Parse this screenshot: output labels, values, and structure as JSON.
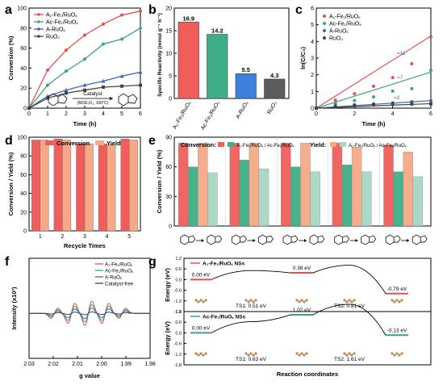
{
  "colors": {
    "red": "#e8504b",
    "green": "#3aa37a",
    "blue": "#3b65b8",
    "dark": "#444444",
    "salmon": "#f5a987",
    "mint": "#a8d8c2",
    "bar_red": "#ef5e5a",
    "bar_green": "#3fae86",
    "bar_blue": "#3d7fde",
    "bar_dark": "#5c5c5c"
  },
  "chart_data": [
    {
      "panel": "a",
      "type": "line",
      "xlabel": "Time (h)",
      "ylabel": "Conversion (%)",
      "xlim": [
        0,
        6
      ],
      "ylim": [
        0,
        100
      ],
      "xticks": [
        "0",
        "1",
        "2",
        "3",
        "4",
        "5",
        "6"
      ],
      "yticks": [
        "0",
        "20",
        "40",
        "60",
        "80",
        "100"
      ],
      "x": [
        0,
        1,
        2,
        3,
        4,
        5,
        6
      ],
      "series": [
        {
          "name": "A₁-Fe₁/RuOₓ",
          "color": "#e8504b",
          "values": [
            0,
            38,
            58,
            73,
            84,
            93,
            97
          ]
        },
        {
          "name": "Aᴄ-Fe₁/RuOₓ",
          "color": "#3aa37a",
          "values": [
            0,
            23,
            37,
            49,
            64,
            69,
            80
          ]
        },
        {
          "name": "A-RuOₓ",
          "color": "#3b65b8",
          "values": [
            0,
            12,
            18,
            23,
            27,
            32,
            36
          ]
        },
        {
          "name": "RuO₂",
          "color": "#444444",
          "values": [
            0,
            10,
            15,
            18,
            21,
            22,
            23
          ]
        }
      ],
      "inset_caption": "Catalyst",
      "inset_conditions": "(MOE,O₂, 100°C)"
    },
    {
      "panel": "b",
      "type": "bar",
      "ylabel": "Specific Reactivity (mmol g⁻¹ h⁻¹)",
      "ylim": [
        0,
        20
      ],
      "yticks": [
        "0",
        "5",
        "10",
        "15",
        "20"
      ],
      "categories": [
        "A₁-Fe₁/RuOₓ",
        "Aᴄ-Fe₁/RuOₓ",
        "A-RuOₓ",
        "RuO₂"
      ],
      "values": [
        16.9,
        14.2,
        5.5,
        4.3
      ],
      "labels": [
        "16.9",
        "14.2",
        "5.5",
        "4.3"
      ],
      "colors": [
        "#ef5e5a",
        "#3fae86",
        "#3d7fde",
        "#5c5c5c"
      ]
    },
    {
      "panel": "c",
      "type": "scatter",
      "xlabel": "Time (h)",
      "ylabel": "ln(C/C₀)",
      "xlim": [
        0,
        6
      ],
      "ylim": [
        0,
        6
      ],
      "xticks": [
        "0",
        "2",
        "4",
        "6"
      ],
      "yticks": [
        "0",
        "1",
        "2",
        "3",
        "4",
        "5",
        "6"
      ],
      "x": [
        0,
        1,
        2,
        3,
        4,
        5,
        6
      ],
      "series": [
        {
          "name": "A₁-Fe₁/RuOₓ",
          "color": "#e8504b",
          "values": [
            0,
            0.48,
            0.87,
            1.31,
            1.83,
            2.66,
            4.28
          ],
          "fit_slope": 0.72
        },
        {
          "name": "Aᴄ-Fe₁/RuOₓ",
          "color": "#3aa37a",
          "values": [
            0,
            0.27,
            0.46,
            0.67,
            1.02,
            1.17,
            2.27
          ],
          "fit_slope": 0.36
        },
        {
          "name": "A-RuOₓ",
          "color": "#3b65b8",
          "values": [
            0,
            0.13,
            0.2,
            0.26,
            0.32,
            0.39,
            0.45
          ],
          "fit_slope": 0.075
        },
        {
          "name": "RuO₂",
          "color": "#444444",
          "values": [
            0,
            0.1,
            0.16,
            0.2,
            0.24,
            0.25,
            0.26
          ],
          "fit_slope": 0.045
        }
      ],
      "annotations": [
        "=11",
        "=7",
        "=2"
      ]
    },
    {
      "panel": "d",
      "type": "bar",
      "xlabel": "Recycle Times",
      "ylabel": "Conversion / Yield (%)",
      "ylim": [
        0,
        100
      ],
      "yticks": [
        "0",
        "20",
        "40",
        "60",
        "80",
        "100"
      ],
      "categories": [
        "1",
        "2",
        "3",
        "4",
        "5"
      ],
      "series": [
        {
          "name": "Conversion",
          "color": "#ef5e5a",
          "values": [
            97,
            98,
            93,
            93,
            98
          ]
        },
        {
          "name": "Yield",
          "color": "#f5a987",
          "values": [
            97,
            97,
            93,
            92,
            97
          ]
        }
      ]
    },
    {
      "panel": "e",
      "type": "bar",
      "ylabel": "Conversion / Yield (%)",
      "ylim": [
        0,
        90
      ],
      "yticks": [
        "0",
        "30",
        "60",
        "90"
      ],
      "legend_conversion": "Conversion:",
      "legend_yield": "Yield:",
      "legend_ratio1": "A₁-Fe₁/RuOₓ / Aᴄ-Fe₁/RuOₓ",
      "legend_ratio2": "A₁-Fe₁/RuOₓ / Aᴄ-Fe₁/RuOₓ",
      "groups": 5,
      "series": [
        {
          "name": "conversion A₁",
          "color": "#ef5e5a",
          "values": [
            84,
            84,
            84,
            84,
            82
          ]
        },
        {
          "name": "conversion Aᴄ",
          "color": "#3fae86",
          "values": [
            60,
            67,
            60,
            62,
            55
          ]
        },
        {
          "name": "yield A₁",
          "color": "#f5a987",
          "values": [
            84,
            84,
            84,
            80,
            75
          ]
        },
        {
          "name": "yield Aᴄ",
          "color": "#a8d8c2",
          "values": [
            54,
            58,
            55,
            55,
            50
          ]
        }
      ]
    },
    {
      "panel": "f",
      "type": "line",
      "xlabel": "g value",
      "ylabel": "Intensity (x10²)",
      "xlim": [
        2.03,
        1.98
      ],
      "xticks": [
        "2.03",
        "2.02",
        "2.01",
        "2.00",
        "1.99",
        "1.98"
      ],
      "series": [
        {
          "name": "A₁-Fe₁/RuOₓ",
          "color": "#e8504b",
          "scale": 1.0
        },
        {
          "name": "Aᴄ-Fe₁/RuOₓ",
          "color": "#3aa37a",
          "scale": 0.72
        },
        {
          "name": "A-RuOₓ",
          "color": "#3b65b8",
          "scale": 0.45
        },
        {
          "name": "Catalyst-free",
          "color": "#444444",
          "scale": 0.12
        }
      ]
    },
    {
      "panel": "g",
      "type": "line",
      "xlabel": "Reaction coordinates",
      "ylabel": "Energy (eV)",
      "yticks": [
        "1.2",
        "0.6",
        "0.0",
        "-0.6",
        "-1.2",
        "-1.8"
      ],
      "ylim": [
        -1.8,
        1.2
      ],
      "top": {
        "name": "A₁-Fe₁/RuOₓ NSs",
        "color": "#e8504b",
        "levels": [
          0.0,
          0.38,
          -0.79
        ],
        "level_labels": [
          "0.00 eV",
          "0.38 eV",
          "-0.79 eV"
        ],
        "ts_labels": [
          "TS1: 0.51 eV",
          "TS2: 0.81 eV"
        ],
        "ts_values": [
          0.51,
          0.81
        ]
      },
      "bottom": {
        "name": "Aᴄ-Fe₁/RuOₓ NSs",
        "color": "#3aa37a",
        "levels": [
          0.0,
          1.02,
          -0.13
        ],
        "level_labels": [
          "0.00 eV",
          "1.02 eV",
          "-0.13 eV"
        ],
        "ts_labels": [
          "TS1: 0.63 eV",
          "TS2: 1.61 eV"
        ],
        "ts_values": [
          0.63,
          1.61
        ]
      }
    }
  ],
  "panel_letters": [
    "a",
    "b",
    "c",
    "d",
    "e",
    "f",
    "g"
  ]
}
